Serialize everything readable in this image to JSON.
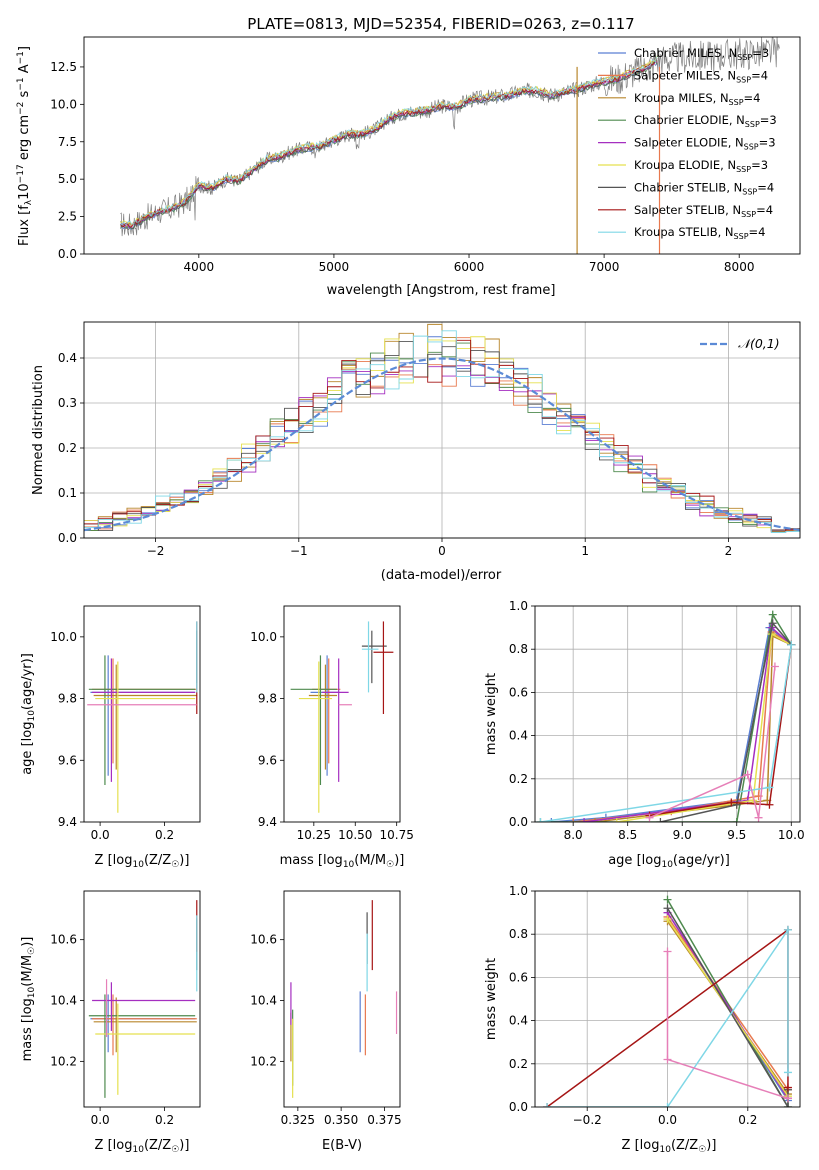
{
  "figure": {
    "title": "PLATE=0813, MJD=52354, FIBERID=0263, z=0.117"
  },
  "colors": {
    "Chabrier MILES": "#5b7fd3",
    "Salpeter MILES": "#e8794f",
    "Kroupa MILES": "#b8862b",
    "Chabrier ELODIE": "#4e8a4e",
    "Salpeter ELODIE": "#a52fc0",
    "Kroupa ELODIE": "#e5e04f",
    "Chabrier STELIB": "#555555",
    "Salpeter STELIB": "#a51515",
    "Kroupa STELIB": "#7fd7e6",
    "spectrum": "#808080",
    "pink": "#e67fb8",
    "normal": "#5b8ad6",
    "grid": "#b0b0b0"
  },
  "chart_data": [
    {
      "id": "spectrum",
      "type": "line",
      "title": "PLATE=0813, MJD=52354, FIBERID=0263, z=0.117",
      "xlabel": "wavelength [Angstrom, rest frame]",
      "ylabel": "Flux [f_λ 10^-17 erg cm^-2 s^-1 A^-1]",
      "xlim": [
        3150,
        8450
      ],
      "ylim": [
        0,
        14.5
      ],
      "xticks": [
        4000,
        5000,
        6000,
        7000,
        8000
      ],
      "yticks": [
        0.0,
        2.5,
        5.0,
        7.5,
        10.0,
        12.5
      ],
      "grid": false,
      "legend_position": "top-right",
      "legend": [
        "Chabrier MILES, N_SSP=3",
        "Salpeter MILES, N_SSP=4",
        "Kroupa MILES, N_SSP=4",
        "Chabrier ELODIE, N_SSP=3",
        "Salpeter ELODIE, N_SSP=3",
        "Kroupa ELODIE, N_SSP=3",
        "Chabrier STELIB, N_SSP=4",
        "Salpeter STELIB, N_SSP=4",
        "Kroupa STELIB, N_SSP=4"
      ],
      "continuum": {
        "x": [
          3400,
          3500,
          3600,
          3700,
          3800,
          3900,
          4000,
          4100,
          4200,
          4300,
          4400,
          4500,
          4600,
          4700,
          4800,
          4900,
          5000,
          5100,
          5200,
          5300,
          5400,
          5500,
          5600,
          5700,
          5800,
          5900,
          6000,
          6100,
          6200,
          6300,
          6400,
          6500,
          6600,
          6700,
          6800,
          6900,
          7000,
          7100,
          7200,
          7300,
          7400
        ],
        "y": [
          2.0,
          1.9,
          2.4,
          2.8,
          3.0,
          3.5,
          4.6,
          4.4,
          5.0,
          4.9,
          5.6,
          6.3,
          6.5,
          6.9,
          7.1,
          7.2,
          7.6,
          8.0,
          8.0,
          8.3,
          9.0,
          9.4,
          9.5,
          9.6,
          9.9,
          9.8,
          10.3,
          10.4,
          10.5,
          10.6,
          10.9,
          10.9,
          10.6,
          10.8,
          11.0,
          11.3,
          11.5,
          11.7,
          12.1,
          12.4,
          13.0
        ]
      },
      "observed_max_x": 8300
    },
    {
      "id": "residuals",
      "type": "histogram",
      "xlabel": "(data-model)/error",
      "ylabel": "Normed distribution",
      "xlim": [
        -2.5,
        2.5
      ],
      "ylim": [
        0,
        0.48
      ],
      "xticks": [
        -2,
        -1,
        0,
        1,
        2
      ],
      "yticks": [
        0.0,
        0.1,
        0.2,
        0.3,
        0.4
      ],
      "grid": true,
      "legend_position": "top-right",
      "legend": [
        "𝒩(0,1)"
      ],
      "bin_width": 0.1
    },
    {
      "id": "age-vs-Z",
      "type": "errorbar",
      "xlabel": "Z [log10(Z/Z☉)]",
      "ylabel": "age  [log10(age/yr)]",
      "xlim": [
        -0.05,
        0.31
      ],
      "ylim": [
        9.4,
        10.1
      ],
      "xticks": [
        0.0,
        0.2
      ],
      "yticks": [
        9.4,
        9.6,
        9.8,
        10.0
      ],
      "series": [
        {
          "name": "Chabrier MILES",
          "x": 0.025,
          "xerr": [
            0.055,
            0.27
          ],
          "y": 9.82,
          "yerr": [
            0.27,
            0.12
          ]
        },
        {
          "name": "Salpeter MILES",
          "x": 0.04,
          "xerr": [
            0.065,
            0.26
          ],
          "y": 9.83,
          "yerr": [
            0.24,
            0.1
          ]
        },
        {
          "name": "Kroupa MILES",
          "x": 0.05,
          "xerr": [
            0.07,
            0.25
          ],
          "y": 9.81,
          "yerr": [
            0.24,
            0.1
          ]
        },
        {
          "name": "Chabrier ELODIE",
          "x": 0.015,
          "xerr": [
            0.05,
            0.28
          ],
          "y": 9.83,
          "yerr": [
            0.31,
            0.11
          ]
        },
        {
          "name": "Salpeter ELODIE",
          "x": 0.035,
          "xerr": [
            0.06,
            0.26
          ],
          "y": 9.82,
          "yerr": [
            0.29,
            0.11
          ]
        },
        {
          "name": "Kroupa ELODIE",
          "x": 0.055,
          "xerr": [
            0.07,
            0.24
          ],
          "y": 9.8,
          "yerr": [
            0.37,
            0.12
          ]
        },
        {
          "name": "Chabrier STELIB",
          "x": 0.3,
          "xerr": [
            0.0,
            0.0
          ],
          "y": 9.97,
          "yerr": [
            0.12,
            0.05
          ]
        },
        {
          "name": "Salpeter STELIB",
          "x": 0.3,
          "xerr": [
            0.0,
            0.0
          ],
          "y": 9.95,
          "yerr": [
            0.2,
            0.1
          ]
        },
        {
          "name": "Kroupa STELIB",
          "x": 0.3,
          "xerr": [
            0.0,
            0.0
          ],
          "y": 9.96,
          "yerr": [
            0.14,
            0.09
          ]
        },
        {
          "name": "pink",
          "x": 0.0,
          "xerr": [
            0.04,
            0.3
          ],
          "y": 9.78,
          "yerr": [
            0.0,
            0.0
          ]
        }
      ]
    },
    {
      "id": "age-vs-mass",
      "type": "errorbar",
      "xlabel": "mass [log10(M/M☉)]",
      "ylabel": "",
      "xlim": [
        10.07,
        10.77
      ],
      "ylim": [
        9.4,
        10.1
      ],
      "xticks": [
        10.25,
        10.5,
        10.75
      ],
      "yticks": [
        9.4,
        9.6,
        9.8,
        10.0
      ],
      "series": [
        {
          "name": "Chabrier MILES",
          "x": 10.33,
          "xerr": [
            0.1,
            0.07
          ],
          "y": 9.82,
          "yerr": [
            0.27,
            0.12
          ]
        },
        {
          "name": "Salpeter MILES",
          "x": 10.34,
          "xerr": [
            0.1,
            0.07
          ],
          "y": 9.83,
          "yerr": [
            0.24,
            0.1
          ]
        },
        {
          "name": "Kroupa MILES",
          "x": 10.32,
          "xerr": [
            0.1,
            0.07
          ],
          "y": 9.81,
          "yerr": [
            0.24,
            0.1
          ]
        },
        {
          "name": "Chabrier ELODIE",
          "x": 10.29,
          "xerr": [
            0.18,
            0.1
          ],
          "y": 9.83,
          "yerr": [
            0.31,
            0.11
          ]
        },
        {
          "name": "Salpeter ELODIE",
          "x": 10.4,
          "xerr": [
            0.1,
            0.06
          ],
          "y": 9.82,
          "yerr": [
            0.29,
            0.11
          ]
        },
        {
          "name": "Kroupa ELODIE",
          "x": 10.28,
          "xerr": [
            0.12,
            0.08
          ],
          "y": 9.8,
          "yerr": [
            0.37,
            0.12
          ]
        },
        {
          "name": "Chabrier STELIB",
          "x": 10.6,
          "xerr": [
            0.06,
            0.09
          ],
          "y": 9.97,
          "yerr": [
            0.12,
            0.05
          ]
        },
        {
          "name": "Salpeter STELIB",
          "x": 10.67,
          "xerr": [
            0.06,
            0.06
          ],
          "y": 9.95,
          "yerr": [
            0.2,
            0.1
          ]
        },
        {
          "name": "Kroupa STELIB",
          "x": 10.58,
          "xerr": [
            0.04,
            0.06
          ],
          "y": 9.96,
          "yerr": [
            0.14,
            0.09
          ]
        },
        {
          "name": "pink",
          "x": 10.45,
          "xerr": [
            0.05,
            0.03
          ],
          "y": 9.78,
          "yerr": [
            0.0,
            0.0
          ]
        }
      ]
    },
    {
      "id": "massweight-vs-age",
      "type": "line",
      "xlabel": "age  [log10(age/yr)]",
      "ylabel": "mass weight",
      "xlim": [
        7.65,
        10.08
      ],
      "ylim": [
        0,
        1.0
      ],
      "xticks": [
        8.0,
        8.5,
        9.0,
        9.5,
        10.0
      ],
      "yticks": [
        0.0,
        0.2,
        0.4,
        0.6,
        0.8,
        1.0
      ],
      "grid": true,
      "series": [
        {
          "name": "Chabrier MILES",
          "x": [
            7.8,
            8.3,
            9.5,
            9.8,
            10.0
          ],
          "y": [
            0.0,
            0.02,
            0.1,
            0.9,
            0.82
          ]
        },
        {
          "name": "Salpeter MILES",
          "x": [
            8.0,
            8.9,
            9.7,
            9.82,
            10.0
          ],
          "y": [
            0.0,
            0.05,
            0.12,
            0.88,
            0.82
          ]
        },
        {
          "name": "Kroupa MILES",
          "x": [
            8.2,
            9.5,
            9.78,
            9.83,
            10.0
          ],
          "y": [
            0.0,
            0.08,
            0.1,
            0.86,
            0.82
          ]
        },
        {
          "name": "Chabrier ELODIE",
          "x": [
            7.7,
            9.5,
            9.83,
            10.0
          ],
          "y": [
            0.0,
            0.0,
            0.96,
            0.82
          ]
        },
        {
          "name": "Salpeter ELODIE",
          "x": [
            8.1,
            9.6,
            9.82,
            10.0
          ],
          "y": [
            0.0,
            0.1,
            0.9,
            0.82
          ]
        },
        {
          "name": "Kroupa ELODIE",
          "x": [
            8.4,
            9.65,
            9.82,
            10.0
          ],
          "y": [
            0.0,
            0.1,
            0.87,
            0.82
          ]
        },
        {
          "name": "Chabrier STELIB",
          "x": [
            8.8,
            9.5,
            9.83,
            10.0
          ],
          "y": [
            0.0,
            0.08,
            0.92,
            0.82
          ]
        },
        {
          "name": "Salpeter STELIB",
          "x": [
            8.7,
            9.45,
            9.8,
            10.0
          ],
          "y": [
            0.03,
            0.09,
            0.08,
            0.82
          ]
        },
        {
          "name": "Kroupa STELIB",
          "x": [
            7.7,
            9.8,
            10.0
          ],
          "y": [
            0.0,
            0.16,
            0.82
          ]
        },
        {
          "name": "pink",
          "x": [
            8.7,
            9.6,
            9.7,
            9.85
          ],
          "y": [
            0.02,
            0.22,
            0.02,
            0.72
          ]
        }
      ]
    },
    {
      "id": "mass-vs-Z",
      "type": "errorbar",
      "xlabel": "Z [log10(Z/Z☉)]",
      "ylabel": "mass [log10(M/M☉)]",
      "xlim": [
        -0.05,
        0.31
      ],
      "ylim": [
        10.05,
        10.76
      ],
      "xticks": [
        0.0,
        0.2
      ],
      "yticks": [
        10.2,
        10.4,
        10.6
      ],
      "series": [
        {
          "name": "Chabrier MILES",
          "x": 0.025,
          "xerr": [
            0.055,
            0.27
          ],
          "y": 10.34,
          "yerr": [
            0.11,
            0.08
          ]
        },
        {
          "name": "Salpeter MILES",
          "x": 0.04,
          "xerr": [
            0.065,
            0.26
          ],
          "y": 10.34,
          "yerr": [
            0.12,
            0.08
          ]
        },
        {
          "name": "Kroupa MILES",
          "x": 0.05,
          "xerr": [
            0.07,
            0.25
          ],
          "y": 10.33,
          "yerr": [
            0.1,
            0.08
          ]
        },
        {
          "name": "Chabrier ELODIE",
          "x": 0.015,
          "xerr": [
            0.05,
            0.28
          ],
          "y": 10.35,
          "yerr": [
            0.27,
            0.07
          ]
        },
        {
          "name": "Salpeter ELODIE",
          "x": 0.035,
          "xerr": [
            0.06,
            0.26
          ],
          "y": 10.4,
          "yerr": [
            0.1,
            0.06
          ]
        },
        {
          "name": "Kroupa ELODIE",
          "x": 0.055,
          "xerr": [
            0.07,
            0.24
          ],
          "y": 10.29,
          "yerr": [
            0.2,
            0.1
          ]
        },
        {
          "name": "Chabrier STELIB",
          "x": 0.3,
          "xerr": [
            0.0,
            0.0
          ],
          "y": 10.6,
          "yerr": [
            0.1,
            0.07
          ]
        },
        {
          "name": "Salpeter STELIB",
          "x": 0.3,
          "xerr": [
            0.0,
            0.0
          ],
          "y": 10.66,
          "yerr": [
            0.1,
            0.07
          ]
        },
        {
          "name": "Kroupa STELIB",
          "x": 0.3,
          "xerr": [
            0.0,
            0.0
          ],
          "y": 10.58,
          "yerr": [
            0.15,
            0.1
          ]
        },
        {
          "name": "pink",
          "x": 0.02,
          "xerr": [
            0.0,
            0.0
          ],
          "y": 10.4,
          "yerr": [
            0.12,
            0.07
          ]
        }
      ]
    },
    {
      "id": "mass-vs-EBV",
      "type": "errorbar",
      "xlabel": "E(B-V)",
      "ylabel": "",
      "xlim": [
        0.317,
        0.384
      ],
      "ylim": [
        10.05,
        10.76
      ],
      "xticks": [
        0.325,
        0.35,
        0.375
      ],
      "yticks": [
        10.2,
        10.4,
        10.6
      ],
      "series": [
        {
          "name": "Chabrier MILES",
          "x": 0.361,
          "y": 10.33,
          "yerr": [
            0.1,
            0.1
          ]
        },
        {
          "name": "Salpeter MILES",
          "x": 0.364,
          "y": 10.34,
          "yerr": [
            0.12,
            0.08
          ]
        },
        {
          "name": "Kroupa MILES",
          "x": 0.321,
          "y": 10.3,
          "yerr": [
            0.1,
            0.06
          ]
        },
        {
          "name": "Chabrier ELODIE",
          "x": 0.322,
          "y": 10.32,
          "yerr": [
            0.2,
            0.05
          ]
        },
        {
          "name": "Salpeter ELODIE",
          "x": 0.321,
          "y": 10.4,
          "yerr": [
            0.08,
            0.06
          ]
        },
        {
          "name": "Kroupa ELODIE",
          "x": 0.322,
          "y": 10.22,
          "yerr": [
            0.14,
            0.12
          ]
        },
        {
          "name": "Chabrier STELIB",
          "x": 0.365,
          "y": 10.6,
          "yerr": [
            0.08,
            0.09
          ]
        },
        {
          "name": "Salpeter STELIB",
          "x": 0.368,
          "y": 10.61,
          "yerr": [
            0.11,
            0.12
          ]
        },
        {
          "name": "Kroupa STELIB",
          "x": 0.365,
          "y": 10.55,
          "yerr": [
            0.12,
            0.07
          ]
        },
        {
          "name": "pink",
          "x": 0.382,
          "y": 10.37,
          "yerr": [
            0.08,
            0.06
          ]
        }
      ]
    },
    {
      "id": "massweight-vs-Z",
      "type": "line",
      "xlabel": "Z [log10(Z/Z☉)]",
      "ylabel": "mass weight",
      "xlim": [
        -0.33,
        0.33
      ],
      "ylim": [
        0,
        1.0
      ],
      "xticks": [
        -0.2,
        0.0,
        0.2
      ],
      "yticks": [
        0.0,
        0.2,
        0.4,
        0.6,
        0.8,
        1.0
      ],
      "grid": true,
      "series": [
        {
          "name": "Chabrier MILES",
          "x": [
            0.0,
            0.3
          ],
          "y": [
            0.9,
            0.03
          ]
        },
        {
          "name": "Salpeter MILES",
          "x": [
            0.0,
            0.3
          ],
          "y": [
            0.88,
            0.08
          ]
        },
        {
          "name": "Kroupa MILES",
          "x": [
            0.0,
            0.3
          ],
          "y": [
            0.86,
            0.06
          ]
        },
        {
          "name": "Chabrier ELODIE",
          "x": [
            0.0,
            0.3,
            0.3
          ],
          "y": [
            0.96,
            0.0,
            0.04
          ]
        },
        {
          "name": "Salpeter ELODIE",
          "x": [
            0.0,
            0.3
          ],
          "y": [
            0.9,
            0.04
          ]
        },
        {
          "name": "Kroupa ELODIE",
          "x": [
            0.0,
            0.3
          ],
          "y": [
            0.87,
            0.05
          ]
        },
        {
          "name": "Chabrier STELIB",
          "x": [
            0.0,
            0.3,
            0.3
          ],
          "y": [
            0.92,
            0.0,
            0.08
          ]
        },
        {
          "name": "Salpeter STELIB",
          "x": [
            -0.3,
            0.3,
            0.3
          ],
          "y": [
            0.0,
            0.82,
            0.09
          ]
        },
        {
          "name": "Kroupa STELIB",
          "x": [
            -0.3,
            0.0,
            0.3,
            0.3
          ],
          "y": [
            0.0,
            0.0,
            0.82,
            0.16
          ]
        },
        {
          "name": "pink",
          "x": [
            0.0,
            0.0,
            0.3
          ],
          "y": [
            0.72,
            0.22,
            0.04
          ]
        }
      ]
    }
  ]
}
